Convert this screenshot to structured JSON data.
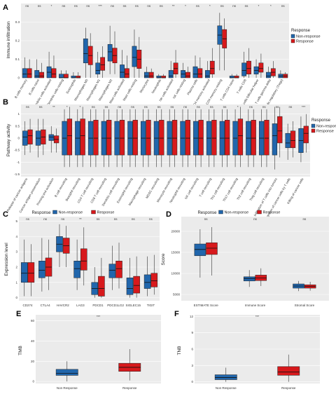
{
  "colors": {
    "non": "#2166ac",
    "resp": "#d7191c",
    "panel_bg": "#ebebeb"
  },
  "chart_data": [
    {
      "panel": "A",
      "type": "boxplot",
      "ylabel": "Immune infiltration",
      "ylim": [
        0,
        0.4
      ],
      "yticks": [
        0.0,
        0.1,
        0.2,
        0.3
      ],
      "legend": {
        "title": "Response",
        "entries": [
          "Non-response",
          "Response"
        ],
        "placement": "right"
      },
      "categories": [
        "B cells memory",
        "B cells naive",
        "Dendritic cells activated",
        "Dendritic cells resting",
        "Eosinophils",
        "Macrophages M0",
        "Macrophages M1",
        "Macrophages M2",
        "Mast cells activated",
        "Mast cells resting",
        "Monocytes",
        "Neutrophils",
        "NK cells activated",
        "NK cells resting",
        "Plasma cells",
        "T cells CD4 memory activated",
        "T cells CD4 memory resting",
        "T cells CD4 naive",
        "T cells CD8",
        "T cells follicular helper",
        "T cells gamma delta",
        "T cells regulatory (Tregs)"
      ],
      "significance": [
        "ns",
        "ns",
        "*",
        "ns",
        "ns",
        "ns",
        "***",
        "ns",
        "ns",
        "ns",
        "ns",
        "ns",
        "**",
        "*",
        "ns",
        "*",
        "ns",
        "ns",
        "ns",
        "*",
        "*",
        "ns"
      ],
      "series": [
        {
          "name": "Non-response",
          "boxes": [
            [
              0,
              0,
              0.02,
              0.05,
              0.11
            ],
            [
              0,
              0,
              0.01,
              0.04,
              0.1
            ],
            [
              0,
              0,
              0.03,
              0.06,
              0.14
            ],
            [
              0,
              0,
              0,
              0.02,
              0.04
            ],
            [
              0,
              0,
              0,
              0.01,
              0.03
            ],
            [
              0,
              0.08,
              0.13,
              0.21,
              0.27
            ],
            [
              0,
              0.02,
              0.04,
              0.08,
              0.14
            ],
            [
              0.02,
              0.09,
              0.14,
              0.18,
              0.28
            ],
            [
              0,
              0,
              0.03,
              0.07,
              0.15
            ],
            [
              0,
              0.06,
              0.11,
              0.17,
              0.26
            ],
            [
              0,
              0,
              0.01,
              0.03,
              0.06
            ],
            [
              0,
              0,
              0,
              0.01,
              0.02
            ],
            [
              0,
              0,
              0.01,
              0.04,
              0.09
            ],
            [
              0,
              0,
              0.02,
              0.04,
              0.08
            ],
            [
              0,
              0,
              0.02,
              0.06,
              0.12
            ],
            [
              0,
              0,
              0.01,
              0.04,
              0.09
            ],
            [
              0.04,
              0.18,
              0.23,
              0.28,
              0.35
            ],
            [
              0,
              0,
              0,
              0.01,
              0.02
            ],
            [
              0,
              0.01,
              0.04,
              0.08,
              0.14
            ],
            [
              0,
              0.02,
              0.04,
              0.06,
              0.1
            ],
            [
              0,
              0,
              0.01,
              0.03,
              0.06
            ],
            [
              0,
              0,
              0.01,
              0.02,
              0.04
            ]
          ]
        },
        {
          "name": "Response",
          "boxes": [
            [
              0,
              0,
              0.02,
              0.05,
              0.1
            ],
            [
              0,
              0,
              0.01,
              0.03,
              0.08
            ],
            [
              0,
              0,
              0.02,
              0.05,
              0.12
            ],
            [
              0,
              0,
              0,
              0.02,
              0.04
            ],
            [
              0,
              0,
              0,
              0.01,
              0.03
            ],
            [
              0,
              0.07,
              0.12,
              0.17,
              0.24
            ],
            [
              0,
              0.04,
              0.07,
              0.11,
              0.17
            ],
            [
              0.02,
              0.08,
              0.12,
              0.16,
              0.25
            ],
            [
              0,
              0,
              0.02,
              0.05,
              0.12
            ],
            [
              0,
              0.05,
              0.1,
              0.15,
              0.22
            ],
            [
              0,
              0,
              0.01,
              0.03,
              0.05
            ],
            [
              0,
              0,
              0,
              0.01,
              0.02
            ],
            [
              0,
              0.02,
              0.05,
              0.08,
              0.15
            ],
            [
              0,
              0,
              0.01,
              0.03,
              0.06
            ],
            [
              0,
              0,
              0.02,
              0.05,
              0.11
            ],
            [
              0,
              0.02,
              0.05,
              0.09,
              0.16
            ],
            [
              0.04,
              0.16,
              0.21,
              0.26,
              0.32
            ],
            [
              0,
              0,
              0,
              0.01,
              0.02
            ],
            [
              0,
              0.02,
              0.05,
              0.09,
              0.16
            ],
            [
              0,
              0.03,
              0.05,
              0.08,
              0.13
            ],
            [
              0,
              0.01,
              0.03,
              0.05,
              0.09
            ],
            [
              0,
              0,
              0.01,
              0.02,
              0.03
            ]
          ]
        }
      ]
    },
    {
      "panel": "B",
      "type": "boxplot",
      "ylabel": "Pathway activity",
      "ylim": [
        -1.6,
        1.4
      ],
      "yticks": [
        -1.5,
        -1.0,
        -0.5,
        0.0,
        0.5,
        1.0
      ],
      "legend": {
        "title": "Response",
        "entries": [
          "Non-response",
          "Response"
        ],
        "placement": "right"
      },
      "categories": [
        "Release of cancer antigens",
        "Cancer antigen presentation",
        "Priming and activation",
        "B cell recruiting",
        "Basophil recruiting",
        "CD4 T cell recruiting",
        "CD8 T cell recruiting",
        "Dendritic cell recruiting",
        "Eosinophil recruiting",
        "Macrophage recruiting",
        "MDSC recruiting",
        "Monocyte recruiting",
        "Neutrophil recruiting",
        "NK cell recruiting",
        "T cell recruiting",
        "Th1 cell recruiting",
        "Th17 cell recruiting",
        "Th2 cell recruiting",
        "Treg cell recruiting",
        "Infiltration of T cells into tumors",
        "Recognition of cancer cells by T cells",
        "Killing of cancer cells"
      ],
      "significance": [
        "ns",
        "ns",
        "**",
        "*",
        "*",
        "ns",
        "ns",
        "ns",
        "ns",
        "ns",
        "ns",
        "ns",
        "ns",
        "ns",
        "ns",
        "ns",
        "*",
        "ns",
        "ns",
        "ns",
        "ns",
        "***"
      ],
      "series": [
        {
          "name": "Non-response",
          "boxes": [
            [
              -0.7,
              -0.3,
              0.05,
              0.3,
              0.7
            ],
            [
              -0.8,
              -0.3,
              0,
              0.3,
              0.8
            ],
            [
              -0.6,
              -0.1,
              0.05,
              0.15,
              0.5
            ],
            [
              -1.2,
              -0.7,
              0,
              0.7,
              1.2
            ],
            [
              -1.2,
              -0.7,
              0,
              0.7,
              1.2
            ],
            [
              -1.2,
              -0.7,
              0,
              0.7,
              1.2
            ],
            [
              -1.2,
              -0.7,
              0,
              0.7,
              1.2
            ],
            [
              -1.2,
              -0.7,
              0,
              0.7,
              1.2
            ],
            [
              -1.2,
              -0.7,
              0,
              0.7,
              1.2
            ],
            [
              -1.2,
              -0.7,
              0,
              0.7,
              1.2
            ],
            [
              -1.2,
              -0.7,
              0,
              0.7,
              1.2
            ],
            [
              -1.2,
              -0.7,
              0,
              0.7,
              1.2
            ],
            [
              -1.2,
              -0.7,
              0,
              0.7,
              1.2
            ],
            [
              -1.2,
              -0.7,
              0,
              0.7,
              1.2
            ],
            [
              -1.2,
              -0.7,
              0,
              0.7,
              1.2
            ],
            [
              -1.2,
              -0.7,
              0,
              0.7,
              1.2
            ],
            [
              -1.2,
              -0.7,
              0,
              0.7,
              1.2
            ],
            [
              -1.2,
              -0.7,
              0,
              0.7,
              1.2
            ],
            [
              -1.2,
              -0.7,
              0,
              0.7,
              1.2
            ],
            [
              -1.3,
              -0.7,
              0.1,
              0.6,
              1.3
            ],
            [
              -0.9,
              -0.4,
              -0.2,
              0.2,
              0.6
            ],
            [
              -1.0,
              -0.6,
              -0.1,
              0.4,
              0.9
            ]
          ]
        },
        {
          "name": "Response",
          "boxes": [
            [
              -0.6,
              -0.25,
              0.1,
              0.35,
              0.8
            ],
            [
              -0.7,
              -0.25,
              0.05,
              0.35,
              0.8
            ],
            [
              -0.6,
              -0.2,
              -0.05,
              0.1,
              0.4
            ],
            [
              -1.2,
              -0.7,
              0.1,
              0.8,
              1.3
            ],
            [
              -1.2,
              -0.7,
              0.1,
              0.8,
              1.3
            ],
            [
              -1.2,
              -0.7,
              0,
              0.75,
              1.2
            ],
            [
              -1.2,
              -0.7,
              0,
              0.75,
              1.2
            ],
            [
              -1.2,
              -0.7,
              0,
              0.75,
              1.2
            ],
            [
              -1.2,
              -0.7,
              0,
              0.75,
              1.2
            ],
            [
              -1.2,
              -0.7,
              0,
              0.75,
              1.2
            ],
            [
              -1.2,
              -0.7,
              0,
              0.75,
              1.2
            ],
            [
              -1.2,
              -0.7,
              0,
              0.75,
              1.2
            ],
            [
              -1.2,
              -0.7,
              0,
              0.75,
              1.2
            ],
            [
              -1.2,
              -0.7,
              0,
              0.75,
              1.2
            ],
            [
              -1.2,
              -0.7,
              0,
              0.75,
              1.2
            ],
            [
              -1.2,
              -0.7,
              0,
              0.75,
              1.2
            ],
            [
              -1.2,
              -0.7,
              0.1,
              0.8,
              1.3
            ],
            [
              -1.2,
              -0.7,
              0,
              0.75,
              1.2
            ],
            [
              -1.2,
              -0.7,
              0,
              0.75,
              1.2
            ],
            [
              -0.8,
              -0.2,
              0.3,
              0.9,
              1.3
            ],
            [
              -0.8,
              -0.4,
              -0.1,
              0.3,
              0.7
            ],
            [
              -0.6,
              -0.2,
              0.2,
              0.5,
              1.0
            ]
          ]
        }
      ]
    },
    {
      "panel": "C",
      "type": "boxplot",
      "ylabel": "Expression level",
      "ylim": [
        -0.2,
        5.3
      ],
      "yticks": [
        0,
        1,
        2,
        3,
        4,
        5
      ],
      "legend": {
        "title": "Response",
        "entries": [
          "Non-response",
          "Response"
        ],
        "placement": "top"
      },
      "categories": [
        "CD274",
        "CTLA4",
        "HAVCR2",
        "LAG3",
        "PDCD1",
        "PDCD1LG2",
        "SIGLEC15",
        "TIGIT"
      ],
      "significance": [
        "ns",
        "ns",
        "ns",
        "**",
        "ns",
        "ns",
        "ns",
        "ns"
      ],
      "series": [
        {
          "name": "Non-response",
          "boxes": [
            [
              0.1,
              1.0,
              1.6,
              2.3,
              3.8
            ],
            [
              0.4,
              1.3,
              1.8,
              2.4,
              3.9
            ],
            [
              2.0,
              3.0,
              3.5,
              4.0,
              4.8
            ],
            [
              0.5,
              1.3,
              1.9,
              2.4,
              3.8
            ],
            [
              0,
              0.2,
              0.6,
              1.0,
              2.0
            ],
            [
              0.5,
              1.3,
              1.8,
              2.2,
              3.4
            ],
            [
              0,
              0.2,
              0.6,
              1.3,
              2.6
            ],
            [
              0.1,
              0.6,
              1.0,
              1.5,
              2.7
            ]
          ]
        },
        {
          "name": "Response",
          "boxes": [
            [
              0.1,
              1.0,
              1.6,
              2.3,
              3.5
            ],
            [
              0.5,
              1.4,
              2.0,
              2.6,
              3.8
            ],
            [
              2.0,
              2.9,
              3.4,
              3.9,
              4.7
            ],
            [
              0.8,
              1.8,
              2.4,
              3.2,
              4.6
            ],
            [
              0,
              0.1,
              0.6,
              1.4,
              2.6
            ],
            [
              0.6,
              1.3,
              1.9,
              2.4,
              3.6
            ],
            [
              0,
              0.3,
              0.8,
              1.4,
              2.7
            ],
            [
              0.2,
              0.7,
              1.1,
              1.6,
              2.8
            ]
          ]
        }
      ]
    },
    {
      "panel": "D",
      "type": "boxplot",
      "ylabel": "Score",
      "ylim": [
        3500,
        23500
      ],
      "yticks": [
        5000,
        10000,
        15000,
        20000
      ],
      "legend": {
        "title": "Response",
        "entries": [
          "Non-response",
          "Response"
        ],
        "placement": "top"
      },
      "categories": [
        "ESTIMATE Score",
        "Immune Score",
        "Stromal Score"
      ],
      "significance": [
        "ns",
        "ns",
        "ns"
      ],
      "series": [
        {
          "name": "Non-response",
          "boxes": [
            [
              9000,
              14200,
              15700,
              17000,
              20500
            ],
            [
              6800,
              8200,
              8800,
              9200,
              10800
            ],
            [
              5800,
              6500,
              7000,
              7500,
              8200
            ]
          ]
        },
        {
          "name": "Response",
          "boxes": [
            [
              9500,
              14500,
              16000,
              17300,
              21000
            ],
            [
              7000,
              8300,
              8900,
              9600,
              11200
            ],
            [
              5900,
              6500,
              6900,
              7300,
              8000
            ]
          ]
        }
      ]
    },
    {
      "panel": "E",
      "type": "boxplot",
      "ylabel": "TMB",
      "ylim": [
        -2,
        66
      ],
      "yticks": [
        0,
        20,
        40,
        60
      ],
      "categories": [
        "Non Response",
        "Response"
      ],
      "significance": [
        "***"
      ],
      "boxes": [
        [
          0,
          6,
          8,
          12,
          20
        ],
        [
          1,
          10,
          14,
          18,
          32
        ]
      ],
      "fills": [
        "#2166ac",
        "#d7191c"
      ]
    },
    {
      "panel": "F",
      "type": "boxplot",
      "ylabel": "TNB",
      "ylim": [
        -0.3,
        12.3
      ],
      "yticks": [
        0,
        3,
        6,
        9,
        12
      ],
      "categories": [
        "Non Response",
        "Response"
      ],
      "significance": [
        "***"
      ],
      "boxes": [
        [
          0,
          0.4,
          0.8,
          1.3,
          2.6
        ],
        [
          0,
          1.2,
          1.8,
          2.8,
          5.0
        ]
      ],
      "fills": [
        "#2166ac",
        "#d7191c"
      ]
    }
  ]
}
